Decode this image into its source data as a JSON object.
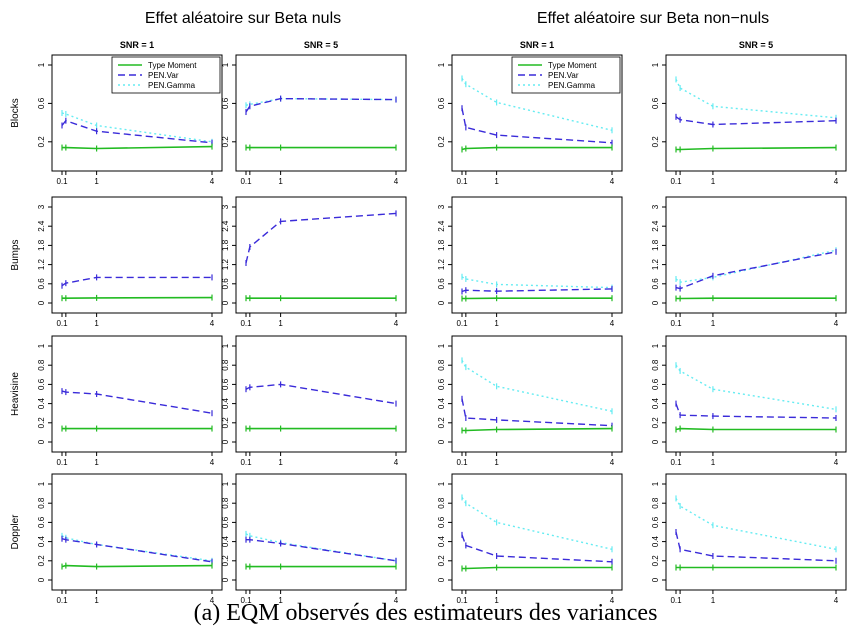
{
  "figure": {
    "group_titles": [
      "Effet aléatoire sur Beta nuls",
      "Effet aléatoire sur Beta non−nuls"
    ],
    "column_titles": [
      "SNR = 1",
      "SNR = 5",
      "SNR = 1",
      "SNR = 5"
    ],
    "row_labels": [
      "Blocks",
      "Bumps",
      "Heavisine",
      "Doppler"
    ],
    "caption": "(a) EQM observés des estimateurs des variances",
    "legend": [
      "Type Moment",
      "PEN.Var",
      "PEN.Gamma"
    ],
    "x_ticks": [
      "0.1",
      "1",
      "4"
    ],
    "colors": {
      "Type Moment": "#22bb22",
      "PEN.Var": "#3a2bd9",
      "PEN.Gamma": "#66ecf2"
    }
  },
  "chart_data": [
    {
      "type": "line",
      "row": "Blocks",
      "column": "Effet aléatoire sur Beta nuls / SNR = 1",
      "x": [
        0.1,
        0.2,
        1,
        4
      ],
      "ylim": [
        0,
        1
      ],
      "yticks": [
        0.2,
        0.6,
        1
      ],
      "legend_position": "top-right",
      "series": [
        {
          "name": "Type Moment",
          "values": [
            0.14,
            0.14,
            0.13,
            0.15
          ]
        },
        {
          "name": "PEN.Var",
          "values": [
            0.37,
            0.42,
            0.31,
            0.19
          ]
        },
        {
          "name": "PEN.Gamma",
          "values": [
            0.5,
            0.49,
            0.37,
            0.2
          ]
        }
      ]
    },
    {
      "type": "line",
      "row": "Blocks",
      "column": "Effet aléatoire sur Beta nuls / SNR = 5",
      "x": [
        0.1,
        0.2,
        1,
        4
      ],
      "ylim": [
        0,
        1
      ],
      "yticks": [
        0.2,
        0.6,
        1
      ],
      "series": [
        {
          "name": "Type Moment",
          "values": [
            0.14,
            0.14,
            0.14,
            0.14
          ]
        },
        {
          "name": "PEN.Var",
          "values": [
            0.51,
            0.57,
            0.65,
            0.64
          ]
        },
        {
          "name": "PEN.Gamma",
          "values": [
            0.58,
            0.59,
            0.65,
            0.64
          ]
        }
      ]
    },
    {
      "type": "line",
      "row": "Blocks",
      "column": "Effet aléatoire sur Beta non−nuls / SNR = 1",
      "x": [
        0.1,
        0.2,
        1,
        4
      ],
      "ylim": [
        0,
        1
      ],
      "yticks": [
        0.2,
        0.6,
        1
      ],
      "legend_position": "top-right",
      "series": [
        {
          "name": "Type Moment",
          "values": [
            0.12,
            0.13,
            0.14,
            0.14
          ]
        },
        {
          "name": "PEN.Var",
          "values": [
            0.55,
            0.35,
            0.27,
            0.19
          ]
        },
        {
          "name": "PEN.Gamma",
          "values": [
            0.86,
            0.8,
            0.61,
            0.32
          ]
        }
      ]
    },
    {
      "type": "line",
      "row": "Blocks",
      "column": "Effet aléatoire sur Beta non−nuls / SNR = 5",
      "x": [
        0.1,
        0.2,
        1,
        4
      ],
      "ylim": [
        0,
        1
      ],
      "yticks": [
        0.2,
        0.6,
        1
      ],
      "series": [
        {
          "name": "Type Moment",
          "values": [
            0.12,
            0.12,
            0.13,
            0.14
          ]
        },
        {
          "name": "PEN.Var",
          "values": [
            0.46,
            0.43,
            0.38,
            0.42
          ]
        },
        {
          "name": "PEN.Gamma",
          "values": [
            0.85,
            0.76,
            0.57,
            0.45
          ]
        }
      ]
    },
    {
      "type": "line",
      "row": "Bumps",
      "column": "Effet aléatoire sur Beta nuls / SNR = 1",
      "x": [
        0.1,
        0.2,
        1,
        4
      ],
      "ylim": [
        0,
        3
      ],
      "yticks": [
        0,
        0.6,
        1.2,
        1.8,
        2.4,
        3
      ],
      "series": [
        {
          "name": "Type Moment",
          "values": [
            0.15,
            0.15,
            0.16,
            0.17
          ]
        },
        {
          "name": "PEN.Var",
          "values": [
            0.54,
            0.62,
            0.8,
            0.8
          ]
        }
      ]
    },
    {
      "type": "line",
      "row": "Bumps",
      "column": "Effet aléatoire sur Beta nuls / SNR = 5",
      "x": [
        0.1,
        0.2,
        1,
        4
      ],
      "ylim": [
        0,
        3
      ],
      "yticks": [
        0,
        0.6,
        1.2,
        1.8,
        2.4,
        3
      ],
      "series": [
        {
          "name": "Type Moment",
          "values": [
            0.15,
            0.15,
            0.15,
            0.15
          ]
        },
        {
          "name": "PEN.Var",
          "values": [
            1.25,
            1.75,
            2.55,
            2.8
          ]
        }
      ]
    },
    {
      "type": "line",
      "row": "Bumps",
      "column": "Effet aléatoire sur Beta non−nuls / SNR = 1",
      "x": [
        0.1,
        0.2,
        1,
        4
      ],
      "ylim": [
        0,
        3
      ],
      "yticks": [
        0,
        0.6,
        1.2,
        1.8,
        2.4,
        3
      ],
      "series": [
        {
          "name": "Type Moment",
          "values": [
            0.14,
            0.14,
            0.15,
            0.15
          ]
        },
        {
          "name": "PEN.Var",
          "values": [
            0.36,
            0.4,
            0.37,
            0.44
          ]
        },
        {
          "name": "PEN.Gamma",
          "values": [
            0.82,
            0.75,
            0.58,
            0.48
          ]
        }
      ]
    },
    {
      "type": "line",
      "row": "Bumps",
      "column": "Effet aléatoire sur Beta non−nuls / SNR = 5",
      "x": [
        0.1,
        0.2,
        1,
        4
      ],
      "ylim": [
        0,
        3
      ],
      "yticks": [
        0,
        0.6,
        1.2,
        1.8,
        2.4,
        3
      ],
      "series": [
        {
          "name": "Type Moment",
          "values": [
            0.14,
            0.14,
            0.15,
            0.15
          ]
        },
        {
          "name": "PEN.Var",
          "values": [
            0.48,
            0.45,
            0.85,
            1.6
          ]
        },
        {
          "name": "PEN.Gamma",
          "values": [
            0.75,
            0.65,
            0.8,
            1.65
          ]
        }
      ]
    },
    {
      "type": "line",
      "row": "Heavisine",
      "column": "Effet aléatoire sur Beta nuls / SNR = 1",
      "x": [
        0.1,
        0.2,
        1,
        4
      ],
      "ylim": [
        0,
        1
      ],
      "yticks": [
        0,
        0.2,
        0.4,
        0.6,
        0.8,
        1
      ],
      "series": [
        {
          "name": "Type Moment",
          "values": [
            0.14,
            0.14,
            0.14,
            0.14
          ]
        },
        {
          "name": "PEN.Var",
          "values": [
            0.53,
            0.52,
            0.5,
            0.3
          ]
        }
      ]
    },
    {
      "type": "line",
      "row": "Heavisine",
      "column": "Effet aléatoire sur Beta nuls / SNR = 5",
      "x": [
        0.1,
        0.2,
        1,
        4
      ],
      "ylim": [
        0,
        1
      ],
      "yticks": [
        0,
        0.2,
        0.4,
        0.6,
        0.8,
        1
      ],
      "series": [
        {
          "name": "Type Moment",
          "values": [
            0.14,
            0.14,
            0.14,
            0.14
          ]
        },
        {
          "name": "PEN.Var",
          "values": [
            0.55,
            0.57,
            0.6,
            0.4
          ]
        }
      ]
    },
    {
      "type": "line",
      "row": "Heavisine",
      "column": "Effet aléatoire sur Beta non−nuls / SNR = 1",
      "x": [
        0.1,
        0.2,
        1,
        4
      ],
      "ylim": [
        0,
        1
      ],
      "yticks": [
        0,
        0.2,
        0.4,
        0.6,
        0.8,
        1
      ],
      "series": [
        {
          "name": "Type Moment",
          "values": [
            0.12,
            0.12,
            0.13,
            0.14
          ]
        },
        {
          "name": "PEN.Var",
          "values": [
            0.45,
            0.25,
            0.23,
            0.17
          ]
        },
        {
          "name": "PEN.Gamma",
          "values": [
            0.85,
            0.78,
            0.58,
            0.32
          ]
        }
      ]
    },
    {
      "type": "line",
      "row": "Heavisine",
      "column": "Effet aléatoire sur Beta non−nuls / SNR = 5",
      "x": [
        0.1,
        0.2,
        1,
        4
      ],
      "ylim": [
        0,
        1
      ],
      "yticks": [
        0,
        0.2,
        0.4,
        0.6,
        0.8,
        1
      ],
      "series": [
        {
          "name": "Type Moment",
          "values": [
            0.13,
            0.14,
            0.13,
            0.13
          ]
        },
        {
          "name": "PEN.Var",
          "values": [
            0.4,
            0.28,
            0.27,
            0.25
          ]
        },
        {
          "name": "PEN.Gamma",
          "values": [
            0.8,
            0.74,
            0.55,
            0.34
          ]
        }
      ]
    },
    {
      "type": "line",
      "row": "Doppler",
      "column": "Effet aléatoire sur Beta nuls / SNR = 1",
      "x": [
        0.1,
        0.2,
        1,
        4
      ],
      "ylim": [
        0,
        1
      ],
      "yticks": [
        0,
        0.2,
        0.4,
        0.6,
        0.8,
        1
      ],
      "series": [
        {
          "name": "Type Moment",
          "values": [
            0.14,
            0.15,
            0.14,
            0.15
          ]
        },
        {
          "name": "PEN.Var",
          "values": [
            0.43,
            0.42,
            0.37,
            0.19
          ]
        },
        {
          "name": "PEN.Gamma",
          "values": [
            0.46,
            0.44,
            0.37,
            0.2
          ]
        }
      ]
    },
    {
      "type": "line",
      "row": "Doppler",
      "column": "Effet aléatoire sur Beta nuls / SNR = 5",
      "x": [
        0.1,
        0.2,
        1,
        4
      ],
      "ylim": [
        0,
        1
      ],
      "yticks": [
        0,
        0.2,
        0.4,
        0.6,
        0.8,
        1
      ],
      "series": [
        {
          "name": "Type Moment",
          "values": [
            0.14,
            0.14,
            0.14,
            0.14
          ]
        },
        {
          "name": "PEN.Var",
          "values": [
            0.42,
            0.42,
            0.38,
            0.2
          ]
        },
        {
          "name": "PEN.Gamma",
          "values": [
            0.48,
            0.46,
            0.39,
            0.2
          ]
        }
      ]
    },
    {
      "type": "line",
      "row": "Doppler",
      "column": "Effet aléatoire sur Beta non−nuls / SNR = 1",
      "x": [
        0.1,
        0.2,
        1,
        4
      ],
      "ylim": [
        0,
        1
      ],
      "yticks": [
        0,
        0.2,
        0.4,
        0.6,
        0.8,
        1
      ],
      "series": [
        {
          "name": "Type Moment",
          "values": [
            0.12,
            0.12,
            0.13,
            0.13
          ]
        },
        {
          "name": "PEN.Var",
          "values": [
            0.47,
            0.36,
            0.25,
            0.19
          ]
        },
        {
          "name": "PEN.Gamma",
          "values": [
            0.86,
            0.8,
            0.6,
            0.32
          ]
        }
      ]
    },
    {
      "type": "line",
      "row": "Doppler",
      "column": "Effet aléatoire sur Beta non−nuls / SNR = 5",
      "x": [
        0.1,
        0.2,
        1,
        4
      ],
      "ylim": [
        0,
        1
      ],
      "yticks": [
        0,
        0.2,
        0.4,
        0.6,
        0.8,
        1
      ],
      "series": [
        {
          "name": "Type Moment",
          "values": [
            0.13,
            0.13,
            0.13,
            0.13
          ]
        },
        {
          "name": "PEN.Var",
          "values": [
            0.5,
            0.32,
            0.25,
            0.2
          ]
        },
        {
          "name": "PEN.Gamma",
          "values": [
            0.85,
            0.77,
            0.57,
            0.32
          ]
        }
      ]
    }
  ]
}
